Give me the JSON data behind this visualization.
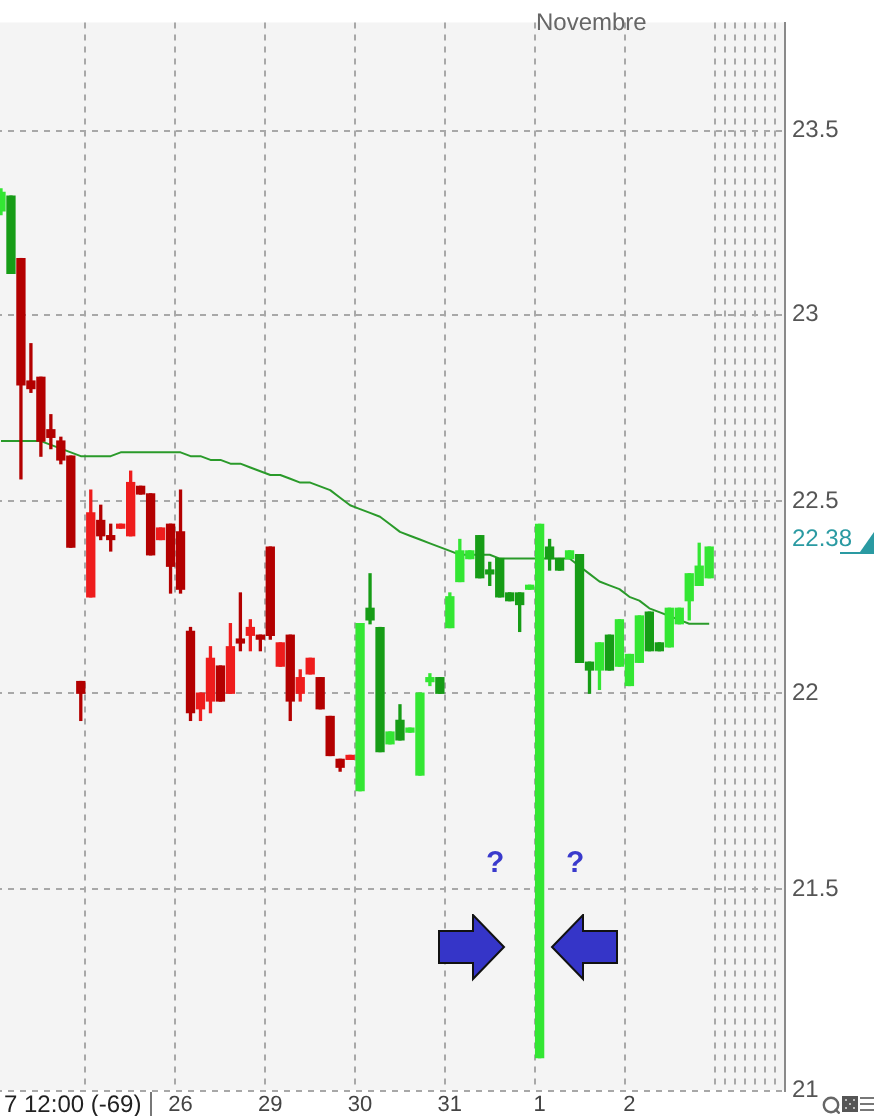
{
  "chart_data": {
    "type": "candlestick",
    "categories": [
      null,
      null,
      null,
      null,
      null,
      null,
      null,
      null,
      null,
      null,
      null,
      null,
      null,
      null,
      null,
      null,
      null,
      null,
      "26",
      null,
      null,
      null,
      null,
      null,
      null,
      null,
      null,
      "29",
      null,
      null,
      null,
      null,
      null,
      null,
      null,
      null,
      "30",
      null,
      null,
      null,
      null,
      null,
      null,
      null,
      null,
      "31",
      null,
      null,
      null,
      null,
      null,
      null,
      null,
      null,
      "1",
      null,
      null,
      null,
      null,
      null,
      null,
      null,
      null,
      "2",
      null,
      null,
      null,
      null,
      null,
      null,
      null,
      null,
      null,
      null,
      null,
      null,
      null,
      null,
      null
    ],
    "ohlc": [
      [
        23.28,
        23.34,
        23.27,
        23.33
      ],
      [
        23.32,
        23.32,
        23.11,
        23.11
      ],
      [
        23.15,
        23.15,
        22.56,
        22.81
      ],
      [
        22.82,
        22.92,
        22.79,
        22.8
      ],
      [
        22.83,
        22.83,
        22.62,
        22.66
      ],
      [
        22.69,
        22.73,
        22.64,
        22.67
      ],
      [
        22.66,
        22.67,
        22.6,
        22.61
      ],
      [
        22.62,
        22.62,
        22.38,
        22.38
      ],
      [
        22.03,
        22.03,
        21.93,
        22.0
      ],
      [
        22.25,
        22.53,
        22.25,
        22.47
      ],
      [
        22.45,
        22.49,
        22.4,
        22.41
      ],
      [
        22.41,
        22.44,
        22.37,
        22.4
      ],
      [
        22.43,
        22.44,
        22.43,
        22.44
      ],
      [
        22.41,
        22.58,
        22.41,
        22.55
      ],
      [
        22.54,
        22.54,
        22.52,
        22.52
      ],
      [
        22.52,
        22.52,
        22.36,
        22.36
      ],
      [
        22.4,
        22.43,
        22.4,
        22.43
      ],
      [
        22.44,
        22.44,
        22.26,
        22.33
      ],
      [
        22.42,
        22.53,
        22.26,
        22.27
      ],
      [
        22.16,
        22.17,
        21.93,
        21.95
      ],
      [
        21.96,
        22.0,
        21.93,
        22.0
      ],
      [
        21.98,
        22.12,
        21.95,
        22.09
      ],
      [
        22.07,
        22.07,
        21.98,
        21.98
      ],
      [
        22.0,
        22.18,
        22.0,
        22.12
      ],
      [
        22.14,
        22.26,
        22.11,
        22.13
      ],
      [
        22.15,
        22.19,
        22.11,
        22.17
      ],
      [
        22.15,
        22.15,
        22.11,
        22.14
      ],
      [
        22.38,
        22.38,
        22.14,
        22.15
      ],
      [
        22.07,
        22.13,
        22.07,
        22.13
      ],
      [
        22.15,
        22.15,
        21.93,
        21.98
      ],
      [
        22.0,
        22.06,
        21.98,
        22.04
      ],
      [
        22.05,
        22.09,
        22.05,
        22.09
      ],
      [
        22.04,
        22.04,
        21.96,
        21.96
      ],
      [
        21.94,
        21.94,
        21.84,
        21.84
      ],
      [
        21.83,
        21.83,
        21.8,
        21.81
      ],
      [
        21.83,
        21.84,
        21.83,
        21.84
      ],
      [
        21.75,
        22.18,
        21.75,
        22.18
      ],
      [
        22.22,
        22.31,
        22.18,
        22.19
      ],
      [
        22.17,
        22.17,
        21.85,
        21.85
      ],
      [
        21.87,
        21.9,
        21.87,
        21.9
      ],
      [
        21.93,
        21.97,
        21.88,
        21.88
      ],
      [
        21.9,
        21.91,
        21.9,
        21.91
      ],
      [
        21.79,
        22.0,
        21.79,
        22.0
      ],
      [
        22.03,
        22.05,
        22.02,
        22.04
      ],
      [
        22.04,
        22.04,
        22.0,
        22.0
      ],
      [
        22.17,
        22.26,
        22.17,
        22.25
      ],
      [
        22.29,
        22.4,
        22.29,
        22.37
      ],
      [
        22.35,
        22.37,
        22.35,
        22.37
      ],
      [
        22.41,
        22.41,
        22.3,
        22.3
      ],
      [
        22.32,
        22.34,
        22.28,
        22.31
      ],
      [
        22.35,
        22.35,
        22.25,
        22.25
      ],
      [
        22.26,
        22.26,
        22.24,
        22.24
      ],
      [
        22.26,
        22.26,
        22.16,
        22.23
      ],
      [
        22.27,
        22.28,
        22.27,
        22.28
      ],
      [
        21.08,
        22.44,
        21.08,
        22.44
      ],
      [
        22.38,
        22.4,
        22.32,
        22.35
      ],
      [
        22.35,
        22.35,
        22.32,
        22.32
      ],
      [
        22.35,
        22.37,
        22.35,
        22.37
      ],
      [
        22.36,
        22.36,
        22.08,
        22.08
      ],
      [
        22.08,
        22.08,
        22.0,
        22.06
      ],
      [
        22.06,
        22.13,
        22.01,
        22.13
      ],
      [
        22.15,
        22.15,
        22.06,
        22.06
      ],
      [
        22.07,
        22.19,
        22.07,
        22.19
      ],
      [
        22.02,
        22.1,
        22.02,
        22.1
      ],
      [
        22.08,
        22.2,
        22.08,
        22.2
      ],
      [
        22.21,
        22.21,
        22.11,
        22.11
      ],
      [
        22.13,
        22.13,
        22.11,
        22.11
      ],
      [
        22.12,
        22.22,
        22.12,
        22.22
      ],
      [
        22.18,
        22.22,
        22.18,
        22.22
      ],
      [
        22.24,
        22.31,
        22.19,
        22.31
      ],
      [
        22.28,
        22.39,
        22.28,
        22.33
      ],
      [
        22.3,
        22.38,
        22.3,
        22.38
      ],
      null,
      null,
      null,
      null,
      null,
      null,
      null
    ],
    "colors": [
      "#33e633",
      "#169c16",
      "#b30000",
      "#b30000",
      "#b30000",
      "#b30000",
      "#b30000",
      "#b30000",
      "#b30000",
      "#ee1c1c",
      "#b30000",
      "#b30000",
      "#ee1c1c",
      "#ee1c1c",
      "#b30000",
      "#b30000",
      "#ee1c1c",
      "#b30000",
      "#b30000",
      "#b30000",
      "#ee1c1c",
      "#ee1c1c",
      "#b30000",
      "#ee1c1c",
      "#b30000",
      "#ee1c1c",
      "#b30000",
      "#b30000",
      "#ee1c1c",
      "#b30000",
      "#ee1c1c",
      "#ee1c1c",
      "#b30000",
      "#b30000",
      "#b30000",
      "#ee1c1c",
      "#33e633",
      "#169c16",
      "#169c16",
      "#33e633",
      "#169c16",
      "#33e633",
      "#33e633",
      "#33e633",
      "#169c16",
      "#33e633",
      "#33e633",
      "#33e633",
      "#169c16",
      "#169c16",
      "#169c16",
      "#169c16",
      "#169c16",
      "#33e633",
      "#33e633",
      "#169c16",
      "#169c16",
      "#33e633",
      "#169c16",
      "#169c16",
      "#33e633",
      "#169c16",
      "#33e633",
      "#33e633",
      "#33e633",
      "#169c16",
      "#169c16",
      "#33e633",
      "#33e633",
      "#33e633",
      "#33e633",
      "#33e633",
      null,
      null,
      null,
      null,
      null,
      null,
      null
    ],
    "series": [
      {
        "type": "line",
        "color": "#2a9a2a",
        "values": [
          22.66,
          22.66,
          22.66,
          22.66,
          22.66,
          22.65,
          22.64,
          22.63,
          22.62,
          22.62,
          22.62,
          22.62,
          22.63,
          22.63,
          22.63,
          22.63,
          22.63,
          22.63,
          22.63,
          22.62,
          22.62,
          22.61,
          22.61,
          22.6,
          22.6,
          22.59,
          22.58,
          22.57,
          22.57,
          22.56,
          22.55,
          22.55,
          22.54,
          22.53,
          22.51,
          22.49,
          22.48,
          22.47,
          22.46,
          22.44,
          22.42,
          22.41,
          22.4,
          22.39,
          22.38,
          22.37,
          22.36,
          22.36,
          22.36,
          22.36,
          22.35,
          22.35,
          22.35,
          22.35,
          22.35,
          22.35,
          22.35,
          22.35,
          22.33,
          22.31,
          22.29,
          22.28,
          22.27,
          22.25,
          22.24,
          22.22,
          22.21,
          22.2,
          22.19,
          22.18,
          22.18,
          22.18,
          null,
          null,
          null,
          null,
          null,
          null,
          null
        ]
      }
    ],
    "ylim": [
      21,
      23.8
    ],
    "yticks": [
      21,
      21.5,
      22,
      22.5,
      23,
      23.5
    ],
    "log": true,
    "grid": true,
    "annotations": [
      "Novembre",
      "7 12:00 (-69)",
      "?",
      "?",
      "22.38"
    ]
  }
}
